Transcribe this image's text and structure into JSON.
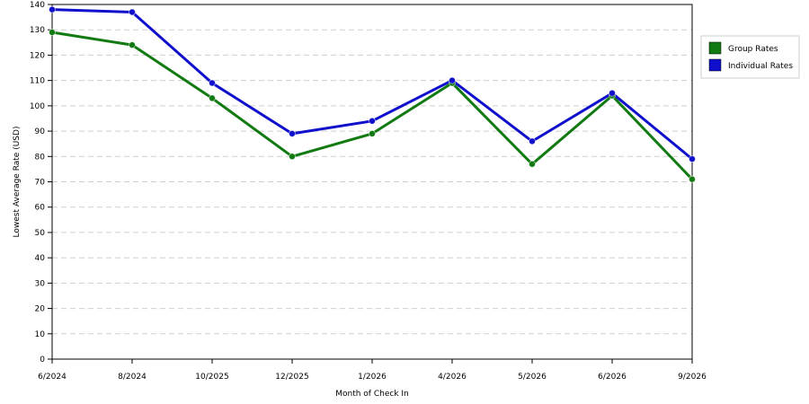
{
  "chart_data": {
    "type": "line",
    "title": "",
    "xlabel": "Month of Check In",
    "ylabel": "Lowest Average Rate (USD)",
    "categories": [
      "6/2024",
      "8/2024",
      "10/2025",
      "12/2025",
      "1/2026",
      "4/2026",
      "5/2026",
      "6/2026",
      "9/2026"
    ],
    "ylim": [
      0,
      140
    ],
    "yticks": [
      0,
      10,
      20,
      30,
      40,
      50,
      60,
      70,
      80,
      90,
      100,
      110,
      120,
      130,
      140
    ],
    "grid": true,
    "legend_position": "right",
    "series": [
      {
        "name": "Group Rates",
        "color": "#117a11",
        "values": [
          129,
          124,
          103,
          80,
          89,
          109,
          77,
          104,
          71
        ]
      },
      {
        "name": "Individual Rates",
        "color": "#1010cc",
        "values": [
          138,
          137,
          109,
          89,
          94,
          110,
          86,
          105,
          79
        ]
      }
    ]
  }
}
